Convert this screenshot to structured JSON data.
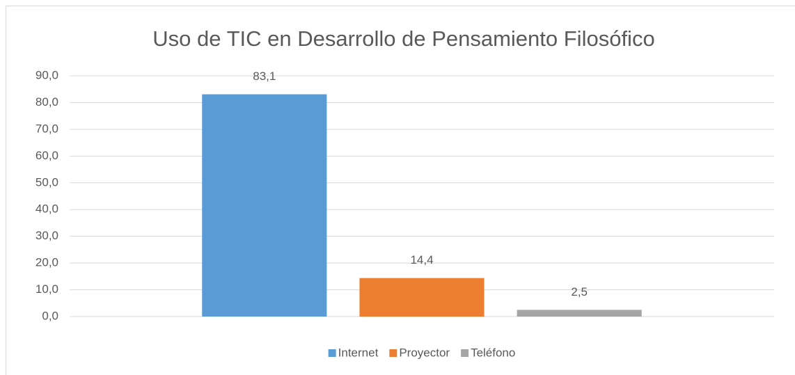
{
  "chart_data": {
    "type": "bar",
    "title": "Uso de TIC en Desarrollo de Pensamiento Filosófico",
    "categories": [
      null
    ],
    "series": [
      {
        "name": "Internet",
        "color": "#5b9bd5",
        "values": [
          83.1
        ],
        "value_labels": [
          "83,1"
        ]
      },
      {
        "name": "Proyector",
        "color": "#ed7d31",
        "values": [
          14.4
        ],
        "value_labels": [
          "14,4"
        ]
      },
      {
        "name": "Teléfono",
        "color": "#a5a5a5",
        "values": [
          2.5
        ],
        "value_labels": [
          "2,5"
        ]
      }
    ],
    "ylim": [
      0,
      90
    ],
    "yticks": [
      {
        "value": 0,
        "label": "0,0"
      },
      {
        "value": 10,
        "label": "10,0"
      },
      {
        "value": 20,
        "label": "20,0"
      },
      {
        "value": 30,
        "label": "30,0"
      },
      {
        "value": 40,
        "label": "40,0"
      },
      {
        "value": 50,
        "label": "50,0"
      },
      {
        "value": 60,
        "label": "60,0"
      },
      {
        "value": 70,
        "label": "70,0"
      },
      {
        "value": 80,
        "label": "80,0"
      },
      {
        "value": 90,
        "label": "90,0"
      }
    ],
    "grid": true,
    "legend": "bottom"
  }
}
